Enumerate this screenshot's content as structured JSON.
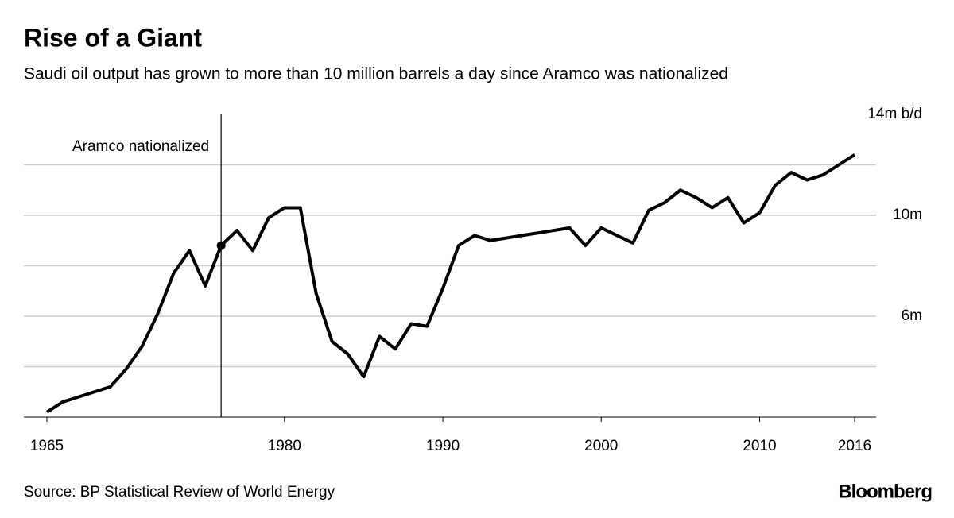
{
  "chart_data": {
    "type": "line",
    "title": "Rise of a Giant",
    "subtitle": "Saudi oil output has grown to more than 10 million barrels a day since Aramco was nationalized",
    "source": "Source: BP Statistical Review of World Energy",
    "brand": "Bloomberg",
    "x": [
      1965,
      1966,
      1967,
      1968,
      1969,
      1970,
      1971,
      1972,
      1973,
      1974,
      1975,
      1976,
      1977,
      1978,
      1979,
      1980,
      1981,
      1982,
      1983,
      1984,
      1985,
      1986,
      1987,
      1988,
      1989,
      1990,
      1991,
      1992,
      1993,
      1994,
      1995,
      1996,
      1997,
      1998,
      1999,
      2000,
      2001,
      2002,
      2003,
      2004,
      2005,
      2006,
      2007,
      2008,
      2009,
      2010,
      2011,
      2012,
      2013,
      2014,
      2015,
      2016
    ],
    "series": [
      {
        "color": "#000000",
        "values": [
          2.2,
          2.6,
          2.8,
          3.0,
          3.2,
          3.9,
          4.8,
          6.1,
          7.7,
          8.6,
          7.2,
          8.8,
          9.4,
          8.6,
          9.9,
          10.3,
          10.3,
          6.9,
          5.0,
          4.5,
          3.6,
          5.2,
          4.7,
          5.7,
          5.6,
          7.1,
          8.8,
          9.2,
          9.0,
          9.1,
          9.2,
          9.3,
          9.4,
          9.5,
          8.8,
          9.5,
          9.2,
          8.9,
          10.2,
          10.5,
          11.0,
          10.7,
          10.3,
          10.7,
          9.7,
          10.1,
          11.2,
          11.7,
          11.4,
          11.6,
          12.0,
          12.4
        ]
      }
    ],
    "xlim": [
      1965,
      2016
    ],
    "xticks": [
      1965,
      1980,
      1990,
      2000,
      2010,
      2016
    ],
    "ylim": [
      2,
      14
    ],
    "yticks": [
      {
        "value": 6,
        "label": "6m"
      },
      {
        "value": 10,
        "label": "10m"
      },
      {
        "value": 14,
        "label": "14m b/d"
      }
    ],
    "grid_lines": [
      4,
      8,
      12
    ],
    "annotation": {
      "text": "Aramco nationalized",
      "x": 1976
    }
  }
}
